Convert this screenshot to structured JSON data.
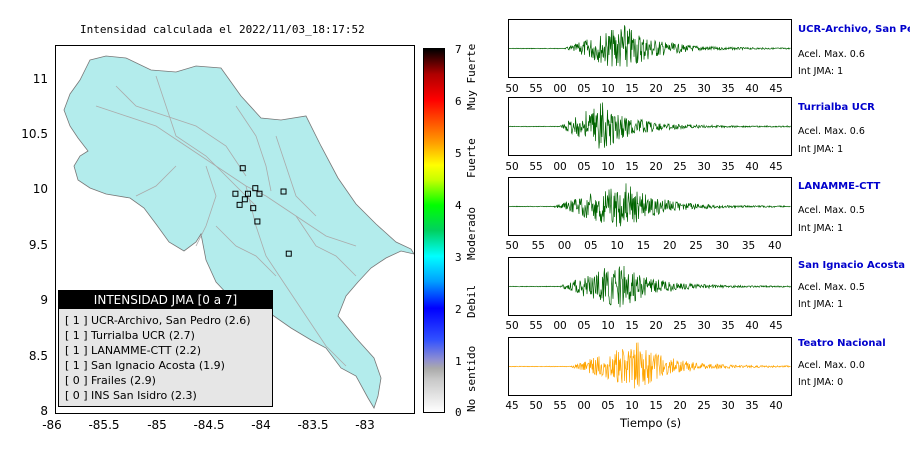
{
  "map": {
    "title": "Intensidad calculada el 2022/11/03_18:17:52",
    "y_ticks": [
      "11",
      "10.5",
      "10",
      "9.5",
      "9",
      "8.5",
      "8"
    ],
    "x_ticks": [
      "-86",
      "-85.5",
      "-85",
      "-84.5",
      "-84",
      "-83.5",
      "-83"
    ],
    "land_color": "#b3ecec",
    "station_markers": [
      {
        "lon": -84.1,
        "lat": 10.14
      },
      {
        "lon": -83.98,
        "lat": 9.96
      },
      {
        "lon": -84.05,
        "lat": 9.91
      },
      {
        "lon": -83.94,
        "lat": 9.91
      },
      {
        "lon": -84.17,
        "lat": 9.91
      },
      {
        "lon": -84.08,
        "lat": 9.86
      },
      {
        "lon": -83.71,
        "lat": 9.93
      },
      {
        "lon": -84.13,
        "lat": 9.81
      },
      {
        "lon": -84.0,
        "lat": 9.78
      },
      {
        "lon": -83.96,
        "lat": 9.66
      },
      {
        "lon": -83.66,
        "lat": 9.37
      }
    ]
  },
  "legend": {
    "title": "INTENSIDAD JMA [0 a 7]",
    "items": [
      {
        "level": "[ 1 ]",
        "label": "UCR-Archivo, San Pedro (2.6)"
      },
      {
        "level": "[ 1 ]",
        "label": "Turrialba UCR (2.7)"
      },
      {
        "level": "[ 1 ]",
        "label": "LANAMME-CTT (2.2)"
      },
      {
        "level": "[ 1 ]",
        "label": "San Ignacio Acosta (1.9)"
      },
      {
        "level": "[ 0 ]",
        "label": "Frailes (2.9)"
      },
      {
        "level": "[ 0 ]",
        "label": "INS San Isidro (2.3)"
      }
    ]
  },
  "colorbar": {
    "ticks": [
      "7",
      "6",
      "5",
      "4",
      "3",
      "2",
      "1",
      "0"
    ],
    "labels": [
      "Muy Fuerte",
      "Fuerte",
      "Moderado",
      "Debil",
      "No sentido"
    ]
  },
  "traces": [
    {
      "name": "UCR-Archivo, San Pedro",
      "acel": "Acel. Max. 0.6",
      "int": "Int JMA: 1",
      "color": "#006400",
      "ticks": [
        "50",
        "55",
        "00",
        "05",
        "10",
        "15",
        "20",
        "25",
        "30",
        "35",
        "40",
        "45"
      ],
      "burst_start": 0.2,
      "burst_peak": 0.41
    },
    {
      "name": "Turrialba UCR",
      "acel": "Acel. Max. 0.6",
      "int": "Int JMA: 1",
      "color": "#006400",
      "ticks": [
        "50",
        "55",
        "00",
        "05",
        "10",
        "15",
        "20",
        "25",
        "30",
        "35",
        "40",
        "45"
      ],
      "burst_start": 0.18,
      "burst_peak": 0.33
    },
    {
      "name": "LANAMME-CTT",
      "acel": "Acel. Max. 0.5",
      "int": "Int JMA: 1",
      "color": "#006400",
      "ticks": [
        "50",
        "55",
        "00",
        "05",
        "10",
        "15",
        "20",
        "25",
        "30",
        "35",
        "40"
      ],
      "burst_start": 0.16,
      "burst_peak": 0.41
    },
    {
      "name": "San Ignacio Acosta",
      "acel": "Acel. Max. 0.5",
      "int": "Int JMA: 1",
      "color": "#006400",
      "ticks": [
        "50",
        "55",
        "00",
        "05",
        "10",
        "15",
        "20",
        "25",
        "30",
        "35",
        "40",
        "45"
      ],
      "burst_start": 0.18,
      "burst_peak": 0.39
    },
    {
      "name": "Teatro Nacional",
      "acel": "Acel. Max. 0.0",
      "int": "Int JMA: 0",
      "color": "#ffa500",
      "ticks": [
        "45",
        "50",
        "55",
        "00",
        "05",
        "10",
        "15",
        "20",
        "25",
        "30",
        "35",
        "40"
      ],
      "burst_start": 0.22,
      "burst_peak": 0.46
    }
  ],
  "xlabel": "Tiempo (s)"
}
